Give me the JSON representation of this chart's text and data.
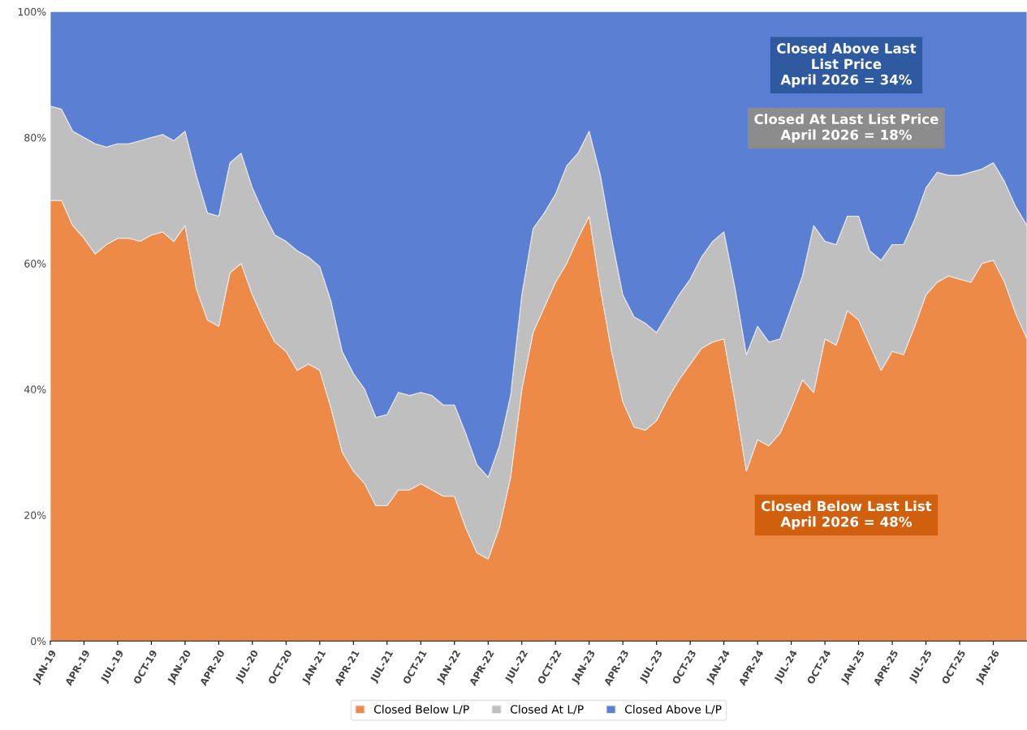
{
  "chart_data": {
    "type": "area",
    "stacked": true,
    "categories": [
      "JAN-19",
      null,
      null,
      "APR-19",
      null,
      null,
      "JUL-19",
      null,
      null,
      "OCT-19",
      null,
      null,
      "JAN-20",
      null,
      null,
      "APR-20",
      null,
      null,
      "JUL-20",
      null,
      null,
      "OCT-20",
      null,
      null,
      "JAN-21",
      null,
      null,
      "APR-21",
      null,
      null,
      "JUL-21",
      null,
      null,
      "OCT-21",
      null,
      null,
      "JAN-22",
      null,
      null,
      "APR-22",
      null,
      null,
      "JUL-22",
      null,
      null,
      "OCT-22",
      null,
      null,
      "JAN-23",
      null,
      null,
      "APR-23",
      null,
      null,
      "JUL-23",
      null,
      null,
      "OCT-23",
      null,
      null,
      "JAN-24",
      null,
      null,
      "APR-24",
      null,
      null,
      "JUL-24",
      null,
      null,
      "OCT-24",
      null,
      null,
      "JAN-25",
      null,
      null,
      "APR-25",
      null,
      null,
      "JUL-25",
      null,
      null,
      "OCT-25",
      null,
      null,
      "JAN-26",
      null,
      null,
      null
    ],
    "series": [
      {
        "name": "Closed Below L/P",
        "color": "#ee8a48",
        "values": [
          70,
          70,
          66,
          64,
          61.5,
          63,
          64,
          64,
          63.5,
          64.5,
          65,
          63.5,
          66,
          56,
          51,
          50,
          58.5,
          60,
          55,
          51,
          47.5,
          46,
          43,
          44,
          43,
          37,
          30,
          27,
          25,
          21.5,
          21.5,
          24,
          24,
          25,
          24,
          23,
          23,
          18,
          14,
          13,
          18,
          26,
          40,
          49,
          53,
          57,
          60,
          64,
          67.5,
          56,
          46,
          38,
          34,
          33.5,
          35,
          38.5,
          41.5,
          44,
          46.5,
          47.5,
          48,
          38,
          27,
          32,
          31,
          33,
          37,
          41.5,
          39.5,
          48,
          47,
          52.5,
          51,
          47,
          43,
          46,
          45.5,
          50,
          55,
          57,
          58,
          57.5,
          57,
          60,
          60.5,
          57,
          52,
          48
        ]
      },
      {
        "name": "Closed At L/P",
        "color": "#bfbfbf",
        "values": [
          15,
          14.5,
          15,
          16,
          17.5,
          15.5,
          15,
          15,
          16,
          15.5,
          15.5,
          16,
          15,
          18,
          17,
          17.5,
          17.5,
          17.5,
          17,
          17,
          17,
          17.5,
          19,
          17,
          16.5,
          17,
          16,
          15.5,
          15,
          14,
          14.5,
          15.5,
          15,
          14.5,
          15,
          14.5,
          14.5,
          15,
          14,
          13,
          13,
          13,
          15,
          16.5,
          15,
          14,
          15.5,
          13.5,
          13.5,
          18,
          18,
          17,
          17.5,
          17,
          14,
          13.5,
          13.5,
          13.5,
          14.5,
          16,
          17,
          18,
          18.5,
          18,
          16.5,
          15,
          16,
          16.5,
          26.5,
          15.5,
          16,
          15,
          16.5,
          15,
          17.5,
          17,
          17.5,
          17,
          17,
          17.5,
          16,
          16.5,
          17.5,
          15,
          15.5,
          16,
          17,
          18
        ]
      },
      {
        "name": "Closed Above L/P",
        "color": "#5b7fd3",
        "values": [
          15,
          15.5,
          19,
          20,
          21,
          21.5,
          21,
          21,
          20.5,
          20,
          19.5,
          20.5,
          19,
          26,
          32,
          32.5,
          24,
          22.5,
          28,
          32,
          35.5,
          36.5,
          38,
          39,
          40.5,
          46,
          54,
          57.5,
          60,
          64.5,
          64,
          60.5,
          61,
          60.5,
          61,
          62.5,
          62.5,
          67,
          72,
          74,
          69,
          61,
          45,
          34.5,
          32,
          29,
          24.5,
          22.5,
          19,
          26,
          36,
          45,
          48.5,
          49.5,
          51,
          48,
          45,
          42.5,
          39,
          36.5,
          35,
          44,
          54.5,
          50,
          52.5,
          52,
          47,
          42,
          34,
          36.5,
          37,
          32.5,
          32.5,
          38,
          39.5,
          37,
          37,
          33,
          28,
          25.5,
          26,
          26,
          25.5,
          25,
          24,
          27,
          31,
          34
        ]
      }
    ],
    "ylim": [
      0,
      100
    ],
    "yticks": [
      {
        "value": 0,
        "label": "0%"
      },
      {
        "value": 20,
        "label": "20%"
      },
      {
        "value": 40,
        "label": "40%"
      },
      {
        "value": 60,
        "label": "60%"
      },
      {
        "value": 80,
        "label": "80%"
      },
      {
        "value": 100,
        "label": "100%"
      }
    ],
    "grid": false,
    "legend": "bottom",
    "annotations": [
      "Closed Above Last\nList Price\nApril 2026 = 34%",
      "Closed At Last List Price\nApril 2026 = 18%",
      "Closed Below Last List\nApril 2026 = 48%"
    ]
  }
}
